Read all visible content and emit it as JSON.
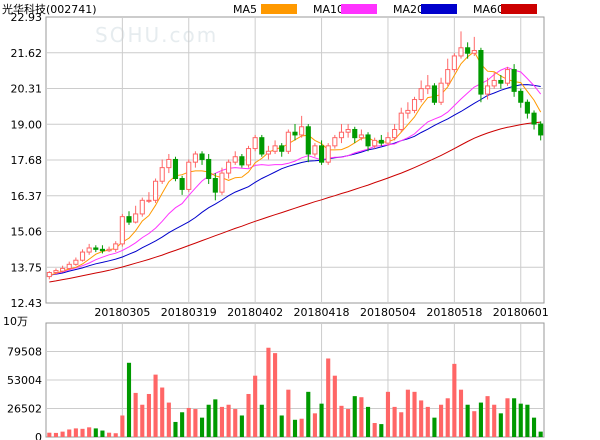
{
  "chart_data": {
    "type": "candlestick",
    "title": "光华科技(002741)",
    "watermark": "SOHU.com",
    "legend": [
      {
        "name": "MA5",
        "color": "#ff9900"
      },
      {
        "name": "MA10",
        "color": "#ff33ff"
      },
      {
        "name": "MA20",
        "color": "#0000cc"
      },
      {
        "name": "MA60",
        "color": "#cc0000"
      }
    ],
    "colors": {
      "up": "#ff6666",
      "down": "#009900",
      "grid": "#cccccc"
    },
    "price_axis": {
      "ylim": [
        12.43,
        22.93
      ],
      "ticks": [
        "22.93",
        "21.62",
        "20.31",
        "19.00",
        "17.68",
        "16.37",
        "15.06",
        "13.75",
        "12.43"
      ]
    },
    "x_tick_labels": [
      {
        "label": "20180305",
        "index": 11
      },
      {
        "label": "20180319",
        "index": 21
      },
      {
        "label": "20180402",
        "index": 31
      },
      {
        "label": "20180418",
        "index": 41
      },
      {
        "label": "20180504",
        "index": 51
      },
      {
        "label": "20180518",
        "index": 61
      },
      {
        "label": "20180601",
        "index": 71
      }
    ],
    "volume_axis": {
      "unit": "10万",
      "ylim": [
        0,
        106000
      ],
      "ticks": [
        "79508",
        "53004",
        "26502",
        "0"
      ]
    },
    "candles": [
      [
        13.4,
        13.55,
        13.3,
        13.6
      ],
      [
        13.55,
        13.62,
        13.5,
        13.7
      ],
      [
        13.6,
        13.7,
        13.55,
        13.8
      ],
      [
        13.7,
        13.85,
        13.65,
        13.95
      ],
      [
        13.85,
        14.0,
        13.8,
        14.1
      ],
      [
        14.0,
        14.3,
        13.95,
        14.4
      ],
      [
        14.3,
        14.45,
        14.2,
        14.6
      ],
      [
        14.45,
        14.4,
        14.3,
        14.55
      ],
      [
        14.4,
        14.35,
        14.25,
        14.55
      ],
      [
        14.35,
        14.4,
        14.3,
        14.5
      ],
      [
        14.4,
        14.6,
        14.3,
        14.7
      ],
      [
        14.6,
        15.6,
        14.5,
        15.7
      ],
      [
        15.6,
        15.4,
        15.3,
        15.8
      ],
      [
        15.4,
        15.7,
        15.35,
        16.0
      ],
      [
        15.7,
        16.2,
        15.6,
        16.3
      ],
      [
        16.2,
        16.2,
        16.1,
        16.5
      ],
      [
        16.2,
        16.9,
        16.1,
        17.0
      ],
      [
        16.9,
        17.4,
        16.8,
        17.7
      ],
      [
        17.4,
        17.7,
        17.2,
        17.9
      ],
      [
        17.7,
        17.0,
        16.9,
        17.8
      ],
      [
        17.0,
        16.6,
        16.4,
        17.1
      ],
      [
        16.6,
        17.6,
        16.5,
        17.7
      ],
      [
        17.6,
        17.9,
        17.4,
        18.0
      ],
      [
        17.9,
        17.7,
        17.5,
        18.0
      ],
      [
        17.7,
        17.0,
        16.8,
        17.9
      ],
      [
        17.0,
        16.5,
        16.2,
        17.2
      ],
      [
        16.5,
        17.2,
        16.4,
        17.4
      ],
      [
        17.2,
        17.6,
        17.0,
        17.7
      ],
      [
        17.6,
        17.8,
        17.5,
        18.0
      ],
      [
        17.8,
        17.5,
        17.4,
        17.9
      ],
      [
        17.5,
        18.1,
        17.4,
        18.2
      ],
      [
        18.1,
        18.5,
        18.0,
        18.6
      ],
      [
        18.5,
        17.9,
        17.8,
        18.6
      ],
      [
        17.9,
        18.0,
        17.7,
        18.2
      ],
      [
        18.0,
        18.2,
        17.9,
        18.4
      ],
      [
        18.2,
        18.0,
        17.8,
        18.3
      ],
      [
        18.0,
        18.7,
        17.9,
        18.8
      ],
      [
        18.7,
        18.6,
        18.4,
        19.0
      ],
      [
        18.6,
        18.9,
        18.5,
        19.3
      ],
      [
        18.9,
        17.9,
        17.6,
        19.0
      ],
      [
        17.9,
        18.2,
        17.8,
        18.3
      ],
      [
        18.2,
        17.6,
        17.5,
        18.4
      ],
      [
        17.6,
        18.2,
        17.5,
        18.3
      ],
      [
        18.2,
        18.5,
        18.1,
        18.6
      ],
      [
        18.5,
        18.7,
        18.3,
        19.0
      ],
      [
        18.7,
        18.8,
        18.5,
        19.0
      ],
      [
        18.8,
        18.5,
        18.3,
        18.9
      ],
      [
        18.5,
        18.6,
        18.4,
        18.8
      ],
      [
        18.6,
        18.2,
        18.0,
        18.7
      ],
      [
        18.2,
        18.4,
        18.1,
        18.5
      ],
      [
        18.4,
        18.3,
        18.2,
        18.6
      ],
      [
        18.3,
        18.5,
        18.2,
        18.7
      ],
      [
        18.5,
        18.8,
        18.4,
        19.0
      ],
      [
        18.8,
        19.4,
        18.7,
        19.6
      ],
      [
        19.4,
        19.5,
        19.2,
        19.8
      ],
      [
        19.5,
        19.9,
        19.4,
        20.0
      ],
      [
        19.9,
        20.3,
        19.8,
        20.6
      ],
      [
        20.3,
        20.4,
        20.1,
        20.8
      ],
      [
        20.4,
        19.8,
        19.7,
        20.5
      ],
      [
        19.8,
        20.5,
        19.7,
        20.7
      ],
      [
        20.5,
        21.0,
        20.4,
        21.4
      ],
      [
        21.0,
        21.5,
        20.9,
        21.6
      ],
      [
        21.5,
        21.8,
        21.4,
        22.4
      ],
      [
        21.8,
        21.6,
        21.4,
        22.0
      ],
      [
        21.6,
        21.7,
        21.5,
        22.2
      ],
      [
        21.7,
        20.1,
        19.8,
        21.8
      ],
      [
        20.1,
        20.4,
        19.9,
        20.7
      ],
      [
        20.4,
        20.6,
        20.3,
        20.9
      ],
      [
        20.6,
        20.5,
        20.3,
        20.8
      ],
      [
        20.5,
        21.0,
        20.4,
        21.1
      ],
      [
        21.0,
        20.2,
        20.0,
        21.2
      ],
      [
        20.2,
        19.8,
        19.6,
        20.3
      ],
      [
        19.8,
        19.4,
        19.2,
        19.9
      ],
      [
        19.4,
        19.0,
        18.8,
        19.5
      ],
      [
        19.0,
        18.6,
        18.4,
        19.1
      ]
    ],
    "ma5": [
      13.45,
      13.52,
      13.6,
      13.68,
      13.74,
      13.86,
      14.04,
      14.22,
      14.32,
      14.38,
      14.44,
      14.67,
      14.81,
      15.08,
      15.44,
      15.64,
      16.02,
      16.46,
      16.88,
      17.1,
      17.14,
      17.24,
      17.28,
      17.28,
      17.24,
      17.1,
      17.03,
      16.93,
      17.03,
      17.05,
      17.24,
      17.58,
      17.74,
      17.95,
      18.08,
      18.14,
      18.28,
      18.42,
      18.56,
      18.59,
      18.4,
      18.28,
      18.05,
      18.05,
      18.06,
      18.16,
      18.31,
      18.47,
      18.51,
      18.36,
      18.33,
      18.35,
      18.44,
      18.7,
      18.98,
      19.26,
      19.66,
      19.97,
      20.01,
      20.09,
      20.36,
      20.79,
      21.21,
      21.47,
      21.66,
      21.2,
      20.94,
      20.92,
      20.76,
      20.64,
      20.56,
      20.52,
      20.2,
      19.88,
      19.44
    ],
    "ma10": [
      13.45,
      13.51,
      13.57,
      13.65,
      13.72,
      13.8,
      13.9,
      14.02,
      14.11,
      14.2,
      14.26,
      14.36,
      14.49,
      14.64,
      14.83,
      14.98,
      15.18,
      15.43,
      15.71,
      15.93,
      16.08,
      16.38,
      16.65,
      16.91,
      17.09,
      17.19,
      17.3,
      17.37,
      17.4,
      17.38,
      17.36,
      17.48,
      17.51,
      17.49,
      17.51,
      17.51,
      17.56,
      17.64,
      17.76,
      17.84,
      17.76,
      17.68,
      17.75,
      17.78,
      17.78,
      17.84,
      17.94,
      18.01,
      18.08,
      18.18,
      18.21,
      18.24,
      18.27,
      18.39,
      18.5,
      18.64,
      18.87,
      19.08,
      19.18,
      19.28,
      19.44,
      19.68,
      19.92,
      20.14,
      20.36,
      20.48,
      20.61,
      20.82,
      20.98,
      21.08,
      20.98,
      20.91,
      20.67,
      20.41,
      20.1
    ],
    "ma20": [
      13.45,
      13.49,
      13.53,
      13.6,
      13.66,
      13.72,
      13.8,
      13.87,
      13.92,
      13.98,
      14.04,
      14.12,
      14.22,
      14.32,
      14.46,
      14.58,
      14.71,
      14.85,
      15.01,
      15.15,
      15.28,
      15.41,
      15.57,
      15.76,
      15.93,
      16.06,
      16.21,
      16.37,
      16.5,
      16.6,
      16.7,
      16.86,
      17.0,
      17.12,
      17.24,
      17.36,
      17.45,
      17.52,
      17.59,
      17.64,
      17.65,
      17.67,
      17.72,
      17.76,
      17.79,
      17.84,
      17.9,
      17.97,
      18.05,
      18.1,
      18.16,
      18.23,
      18.3,
      18.39,
      18.46,
      18.55,
      18.69,
      18.81,
      18.95,
      19.07,
      19.19,
      19.33,
      19.46,
      19.61,
      19.76,
      19.9,
      20.05,
      20.14,
      20.24,
      20.32,
      20.39,
      20.44,
      20.45,
      20.42,
      20.38
    ],
    "ma60": [
      13.2,
      13.24,
      13.29,
      13.33,
      13.38,
      13.43,
      13.48,
      13.53,
      13.58,
      13.63,
      13.69,
      13.75,
      13.82,
      13.89,
      13.96,
      14.03,
      14.11,
      14.19,
      14.28,
      14.36,
      14.45,
      14.54,
      14.63,
      14.72,
      14.81,
      14.9,
      14.99,
      15.08,
      15.17,
      15.25,
      15.34,
      15.43,
      15.51,
      15.59,
      15.67,
      15.75,
      15.83,
      15.91,
      15.99,
      16.07,
      16.15,
      16.22,
      16.3,
      16.37,
      16.45,
      16.52,
      16.6,
      16.68,
      16.76,
      16.85,
      16.93,
      17.02,
      17.11,
      17.2,
      17.3,
      17.4,
      17.51,
      17.62,
      17.73,
      17.85,
      17.97,
      18.1,
      18.23,
      18.36,
      18.48,
      18.58,
      18.67,
      18.75,
      18.82,
      18.88,
      18.93,
      18.98,
      19.02,
      19.05,
      19.07
    ],
    "volumes": [
      4000,
      3800,
      5000,
      7000,
      8000,
      7600,
      9000,
      8000,
      6000,
      4000,
      3500,
      20000,
      69000,
      41000,
      30000,
      40000,
      58000,
      46000,
      32000,
      14000,
      23000,
      27000,
      26000,
      18000,
      30000,
      35000,
      28000,
      30000,
      26000,
      20000,
      40000,
      57000,
      30000,
      83000,
      78000,
      20000,
      44000,
      16000,
      17000,
      42000,
      22000,
      31000,
      73000,
      57000,
      29000,
      26000,
      38000,
      37000,
      28000,
      13000,
      12000,
      42000,
      28000,
      23000,
      44000,
      42000,
      34000,
      28000,
      18000,
      30000,
      36000,
      68000,
      44000,
      30000,
      24000,
      32000,
      38000,
      30000,
      22000,
      36000,
      36000,
      31000,
      30000,
      18000,
      5000
    ]
  }
}
